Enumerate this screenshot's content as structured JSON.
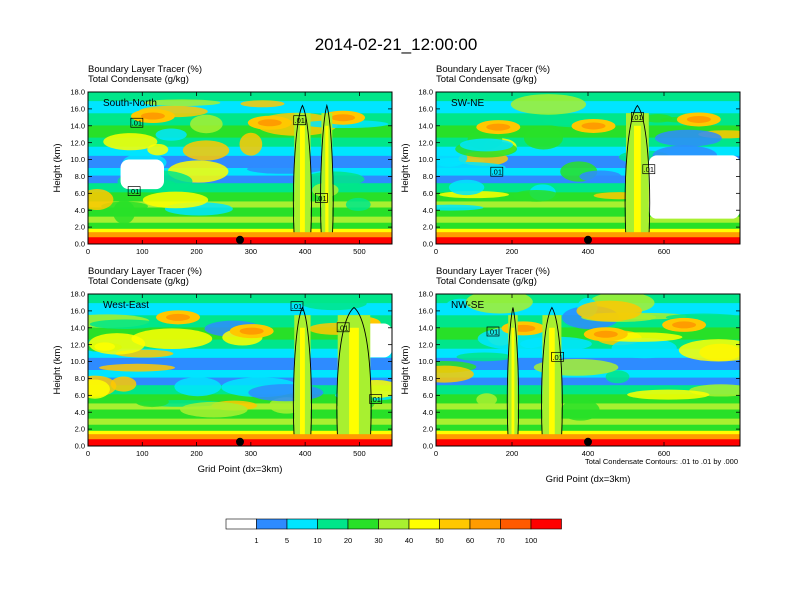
{
  "figure": {
    "title": "2014-02-21_12:00:00",
    "xlabel": "Grid Point (dx=3km)",
    "contour_note": "Total Condensate Contours: .01 to .01 by .000"
  },
  "colorbar": {
    "colors": [
      "#ffffff",
      "#2e8bff",
      "#00e5ff",
      "#00e68a",
      "#28e028",
      "#a8f030",
      "#ffff00",
      "#ffc800",
      "#ff9c00",
      "#ff5a00",
      "#ff0000"
    ],
    "labels": [
      "1",
      "5",
      "10",
      "20",
      "30",
      "40",
      "50",
      "60",
      "70",
      "100"
    ]
  },
  "chart_data": [
    {
      "type": "heatmap",
      "name": "South-North",
      "title_line1": "Boundary Layer Tracer   (%)",
      "title_line2": "Total Condensate   (g/kg)",
      "ylabel": "Height (km)",
      "xlabel": "",
      "xlim": [
        0,
        560
      ],
      "ylim": [
        0,
        18
      ],
      "xticks": [
        0,
        100,
        200,
        300,
        400,
        500
      ],
      "yticks": [
        "0.0",
        "2.0",
        "4.0",
        "6.0",
        "8.0",
        "10.0",
        "12.0",
        "14.0",
        "16.0",
        "18.0"
      ],
      "marker_x": 280,
      "contour_label": ".01",
      "contour_label_positions": [
        [
          90,
          14.3
        ],
        [
          85,
          6.2
        ],
        [
          390,
          14.6
        ],
        [
          430,
          5.4
        ]
      ],
      "convective_towers": [
        [
          380,
          410
        ],
        [
          430,
          450
        ]
      ],
      "white_patches": [
        [
          60,
          140,
          6.5,
          10.0
        ]
      ]
    },
    {
      "type": "heatmap",
      "name": "SW-NE",
      "title_line1": "Boundary Layer Tracer   (%)",
      "title_line2": "Total Condensate   (g/kg)",
      "ylabel": "Height (km)",
      "xlabel": "",
      "xlim": [
        0,
        800
      ],
      "ylim": [
        0,
        18
      ],
      "xticks": [
        0,
        200,
        400,
        600
      ],
      "yticks": [
        "0.0",
        "2.0",
        "4.0",
        "6.0",
        "8.0",
        "10.0",
        "12.0",
        "14.0",
        "16.0",
        "18.0"
      ],
      "marker_x": 400,
      "contour_label": ".01",
      "contour_label_positions": [
        [
          160,
          8.5
        ],
        [
          530,
          15.0
        ],
        [
          560,
          8.8
        ]
      ],
      "convective_towers": [
        [
          500,
          560
        ]
      ],
      "white_patches": [
        [
          560,
          800,
          3.0,
          10.5
        ]
      ]
    },
    {
      "type": "heatmap",
      "name": "West-East",
      "title_line1": "Boundary Layer Tracer   (%)",
      "title_line2": "Total Condensate   (g/kg)",
      "ylabel": "Height (km)",
      "xlabel": "Grid Point (dx=3km)",
      "xlim": [
        0,
        560
      ],
      "ylim": [
        0,
        18
      ],
      "xticks": [
        0,
        100,
        200,
        300,
        400,
        500
      ],
      "yticks": [
        "0.0",
        "2.0",
        "4.0",
        "6.0",
        "8.0",
        "10.0",
        "12.0",
        "14.0",
        "16.0",
        "18.0"
      ],
      "marker_x": 280,
      "contour_label": ".01",
      "contour_label_positions": [
        [
          385,
          16.5
        ],
        [
          470,
          14.0
        ],
        [
          530,
          5.5
        ]
      ],
      "convective_towers": [
        [
          380,
          410
        ],
        [
          460,
          520
        ]
      ],
      "white_patches": [
        [
          500,
          560,
          10.5,
          14.5
        ]
      ]
    },
    {
      "type": "heatmap",
      "name": "NW-SE",
      "title_line1": "Boundary Layer Tracer   (%)",
      "title_line2": "Total Condensate   (g/kg)",
      "ylabel": "Height (km)",
      "xlabel": "Grid Point (dx=3km)",
      "xlim": [
        0,
        800
      ],
      "ylim": [
        0,
        18
      ],
      "xticks": [
        0,
        200,
        400,
        600
      ],
      "yticks": [
        "0.0",
        "2.0",
        "4.0",
        "6.0",
        "8.0",
        "10.0",
        "12.0",
        "14.0",
        "16.0",
        "18.0"
      ],
      "marker_x": 400,
      "contour_label": ".01",
      "contour_label_positions": [
        [
          150,
          13.5
        ],
        [
          320,
          10.5
        ]
      ],
      "convective_towers": [
        [
          190,
          215
        ],
        [
          280,
          330
        ]
      ],
      "white_patches": []
    }
  ]
}
